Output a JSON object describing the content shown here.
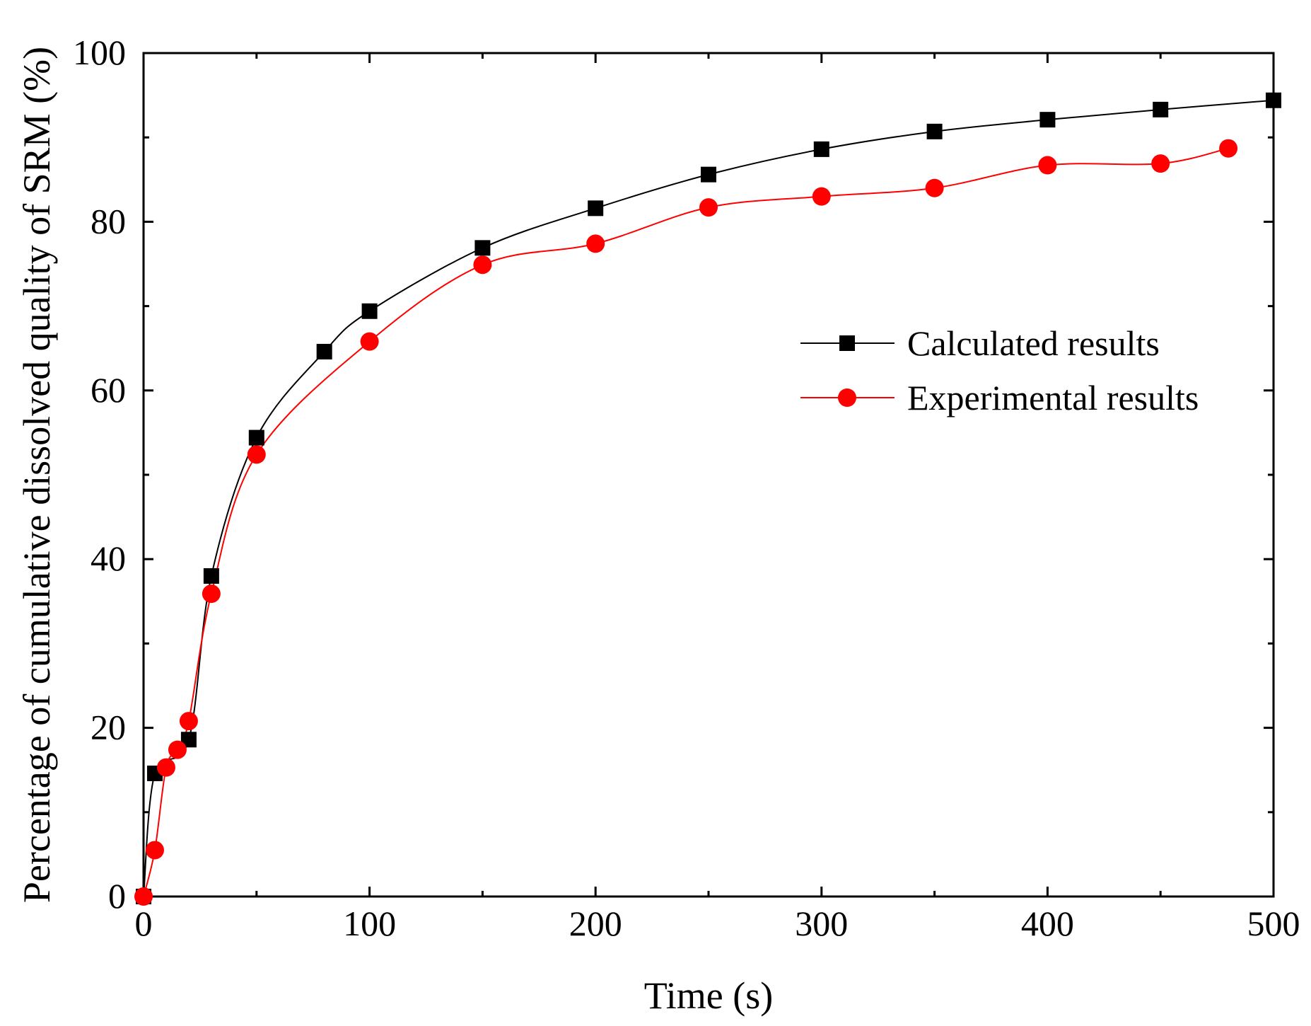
{
  "chart_data": {
    "type": "line",
    "title": "",
    "xlabel": "Time (s)",
    "ylabel": "Percentage of cumulative dissolved quality of SRM (%)",
    "xlim": [
      0,
      500
    ],
    "ylim": [
      0,
      100
    ],
    "xticks": [
      0,
      100,
      200,
      300,
      400,
      500
    ],
    "yticks": [
      0,
      20,
      40,
      60,
      80,
      100
    ],
    "xticklabels": [
      "0",
      "100",
      "200",
      "300",
      "400",
      "500"
    ],
    "yticklabels": [
      "0",
      "20",
      "40",
      "60",
      "80",
      "100"
    ],
    "grid": false,
    "legend_position": "center-right",
    "series": [
      {
        "name": "Calculated results",
        "color": "#000000",
        "marker": "square",
        "x": [
          0,
          5,
          20,
          30,
          50,
          80,
          100,
          150,
          200,
          250,
          300,
          350,
          400,
          450,
          500
        ],
        "y": [
          0,
          14.6,
          18.6,
          38.0,
          54.4,
          64.6,
          69.4,
          76.9,
          81.6,
          85.6,
          88.6,
          90.7,
          92.1,
          93.3,
          94.4
        ]
      },
      {
        "name": "Experimental results",
        "color": "#ff0000",
        "marker": "circle",
        "x": [
          0,
          5,
          10,
          15,
          20,
          30,
          50,
          100,
          150,
          200,
          250,
          300,
          350,
          400,
          450,
          480
        ],
        "y": [
          0,
          5.5,
          15.3,
          17.4,
          20.8,
          35.9,
          52.4,
          65.8,
          74.9,
          77.4,
          81.7,
          83.0,
          84.0,
          86.7,
          86.9,
          88.7
        ]
      }
    ]
  }
}
